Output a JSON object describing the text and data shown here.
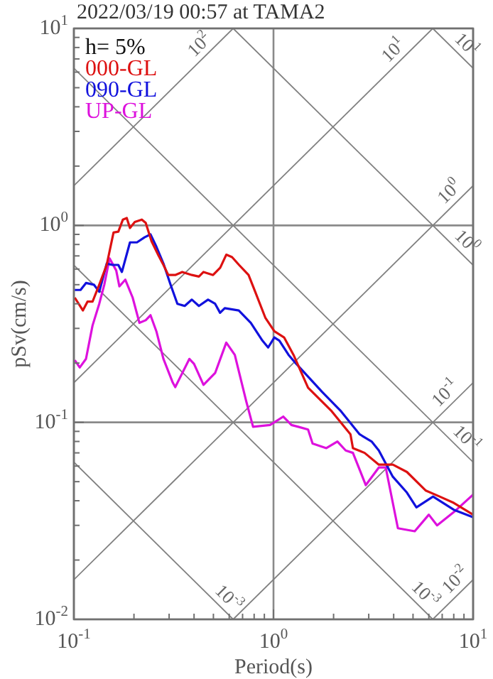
{
  "chart_data": {
    "type": "line",
    "title": "2022/03/19 00:57 at TAMA2",
    "xlabel": "Period(s)",
    "ylabel": "pSv(cm/s)",
    "log": "xy",
    "grid": true,
    "legend": "top left",
    "xlim": [
      0.1,
      10
    ],
    "ylim": [
      0.01,
      10
    ],
    "xticks": [
      {
        "value": 0.1,
        "label": "10$^{-1}$"
      },
      {
        "value": 0.2,
        "label": null
      },
      {
        "value": 0.3,
        "label": null
      },
      {
        "value": 0.4,
        "label": null
      },
      {
        "value": 0.5,
        "label": null
      },
      {
        "value": 0.6,
        "label": null
      },
      {
        "value": 0.7,
        "label": null
      },
      {
        "value": 0.8,
        "label": null
      },
      {
        "value": 0.9,
        "label": null
      },
      {
        "value": 1,
        "label": "10$^{0}$"
      },
      {
        "value": 2,
        "label": null
      },
      {
        "value": 3,
        "label": null
      },
      {
        "value": 4,
        "label": null
      },
      {
        "value": 5,
        "label": null
      },
      {
        "value": 6,
        "label": null
      },
      {
        "value": 7,
        "label": null
      },
      {
        "value": 8,
        "label": null
      },
      {
        "value": 9,
        "label": null
      },
      {
        "value": 10,
        "label": "10$^{1}$"
      }
    ],
    "yticks": [
      {
        "value": 0.01,
        "label": "10$^{-2}$"
      },
      {
        "value": 0.02,
        "label": null
      },
      {
        "value": 0.03,
        "label": null
      },
      {
        "value": 0.04,
        "label": null
      },
      {
        "value": 0.05,
        "label": null
      },
      {
        "value": 0.06,
        "label": null
      },
      {
        "value": 0.07,
        "label": null
      },
      {
        "value": 0.08,
        "label": null
      },
      {
        "value": 0.09,
        "label": null
      },
      {
        "value": 0.1,
        "label": "10$^{-1}$"
      },
      {
        "value": 0.2,
        "label": null
      },
      {
        "value": 0.3,
        "label": null
      },
      {
        "value": 0.4,
        "label": null
      },
      {
        "value": 0.5,
        "label": null
      },
      {
        "value": 0.6,
        "label": null
      },
      {
        "value": 0.7,
        "label": null
      },
      {
        "value": 0.8,
        "label": null
      },
      {
        "value": 0.9,
        "label": null
      },
      {
        "value": 1,
        "label": "10$^{0}$"
      },
      {
        "value": 2,
        "label": null
      },
      {
        "value": 3,
        "label": null
      },
      {
        "value": 4,
        "label": null
      },
      {
        "value": 5,
        "label": null
      },
      {
        "value": 6,
        "label": null
      },
      {
        "value": 7,
        "label": null
      },
      {
        "value": 8,
        "label": null
      },
      {
        "value": 9,
        "label": null
      },
      {
        "value": 10,
        "label": "10$^{1}$"
      }
    ],
    "series": [
      {
        "name": "000-GL",
        "color": "#dd1111",
        "x": [
          0.101,
          0.111,
          0.117,
          0.124,
          0.134,
          0.146,
          0.158,
          0.167,
          0.176,
          0.184,
          0.191,
          0.202,
          0.219,
          0.229,
          0.245,
          0.266,
          0.281,
          0.297,
          0.322,
          0.349,
          0.39,
          0.423,
          0.446,
          0.498,
          0.541,
          0.58,
          0.62,
          0.672,
          0.75,
          0.81,
          0.91,
          1.01,
          1.13,
          1.26,
          1.49,
          1.94,
          2.43,
          2.5,
          2.86,
          3.37,
          3.96,
          4.66,
          5.8,
          6.8,
          8.0,
          10
        ],
        "values": [
          0.43,
          0.37,
          0.41,
          0.41,
          0.5,
          0.63,
          0.92,
          0.93,
          1.07,
          1.09,
          0.97,
          1.04,
          1.07,
          1.03,
          0.83,
          0.7,
          0.63,
          0.56,
          0.56,
          0.58,
          0.56,
          0.55,
          0.58,
          0.56,
          0.61,
          0.71,
          0.69,
          0.63,
          0.56,
          0.46,
          0.34,
          0.29,
          0.27,
          0.22,
          0.15,
          0.115,
          0.087,
          0.074,
          0.07,
          0.061,
          0.061,
          0.056,
          0.045,
          0.042,
          0.039,
          0.034
        ]
      },
      {
        "name": "090-GL",
        "color": "#1111dd",
        "x": [
          0.101,
          0.108,
          0.115,
          0.126,
          0.134,
          0.146,
          0.156,
          0.167,
          0.174,
          0.191,
          0.207,
          0.226,
          0.242,
          0.259,
          0.281,
          0.305,
          0.33,
          0.359,
          0.39,
          0.423,
          0.47,
          0.51,
          0.54,
          0.57,
          0.67,
          0.77,
          0.88,
          0.94,
          1.01,
          1.07,
          1.19,
          1.29,
          1.75,
          2.16,
          2.7,
          3.1,
          3.37,
          3.96,
          4.66,
          5.2,
          6.3,
          8.0,
          10
        ],
        "values": [
          0.47,
          0.47,
          0.51,
          0.5,
          0.46,
          0.64,
          0.63,
          0.63,
          0.58,
          0.82,
          0.82,
          0.87,
          0.9,
          0.78,
          0.64,
          0.5,
          0.4,
          0.39,
          0.42,
          0.39,
          0.42,
          0.4,
          0.36,
          0.38,
          0.37,
          0.32,
          0.26,
          0.24,
          0.27,
          0.26,
          0.22,
          0.2,
          0.143,
          0.115,
          0.087,
          0.08,
          0.072,
          0.053,
          0.044,
          0.037,
          0.042,
          0.036,
          0.033
        ]
      },
      {
        "name": "UP-GL",
        "color": "#dd11dd",
        "x": [
          0.101,
          0.107,
          0.115,
          0.124,
          0.134,
          0.142,
          0.151,
          0.163,
          0.169,
          0.181,
          0.197,
          0.213,
          0.229,
          0.242,
          0.259,
          0.281,
          0.313,
          0.322,
          0.379,
          0.4,
          0.446,
          0.51,
          0.58,
          0.64,
          0.73,
          0.79,
          0.96,
          1.01,
          1.12,
          1.23,
          1.33,
          1.49,
          1.57,
          1.84,
          2.09,
          2.3,
          2.5,
          2.9,
          3.37,
          3.65,
          4.2,
          5.1,
          6.0,
          6.6,
          8.0,
          10
        ],
        "values": [
          0.207,
          0.19,
          0.21,
          0.31,
          0.4,
          0.5,
          0.68,
          0.59,
          0.49,
          0.53,
          0.43,
          0.32,
          0.33,
          0.35,
          0.29,
          0.21,
          0.159,
          0.151,
          0.21,
          0.198,
          0.155,
          0.178,
          0.254,
          0.22,
          0.128,
          0.095,
          0.097,
          0.1,
          0.107,
          0.097,
          0.095,
          0.092,
          0.078,
          0.074,
          0.08,
          0.072,
          0.07,
          0.048,
          0.059,
          0.059,
          0.029,
          0.028,
          0.034,
          0.03,
          0.035,
          0.043
        ]
      },
      {
        "type": "line",
        "color": "#808080",
        "x": [
          0.1,
          0.628
        ],
        "values": [
          1.59,
          10
        ]
      },
      {
        "type": "line",
        "color": "#808080",
        "x": [
          0.1,
          6.28
        ],
        "values": [
          0.159,
          10
        ]
      },
      {
        "type": "line",
        "color": "#808080",
        "x": [
          0.1,
          10
        ],
        "values": [
          0.0159,
          1.59
        ]
      },
      {
        "type": "line",
        "color": "#808080",
        "x": [
          0.628,
          10
        ],
        "values": [
          0.01,
          0.159
        ]
      },
      {
        "type": "line",
        "color": "#808080",
        "x": [
          6.28,
          10
        ],
        "values": [
          0.01,
          0.0159
        ]
      },
      {
        "type": "line",
        "color": "#808080",
        "x": [
          6.28,
          10
        ],
        "values": [
          10,
          6.28
        ]
      },
      {
        "type": "line",
        "color": "#808080",
        "x": [
          0.628,
          10
        ],
        "values": [
          10,
          0.628
        ]
      },
      {
        "type": "line",
        "color": "#808080",
        "x": [
          0.1,
          10
        ],
        "values": [
          6.28,
          0.0628
        ]
      },
      {
        "type": "line",
        "color": "#808080",
        "x": [
          0.1,
          6.28
        ],
        "values": [
          0.628,
          0.01
        ]
      },
      {
        "type": "line",
        "color": "#808080",
        "x": [
          0.1,
          0.628
        ],
        "values": [
          0.0628,
          0.01
        ]
      }
    ],
    "annotations": [
      "h= 5%",
      {
        "text": "10$^{2}$",
        "x": 0.47,
        "y": 7.47
      },
      {
        "text": "10$^{1}$",
        "x": 4.4,
        "y": 7
      },
      {
        "text": "10$^{1}$",
        "x": 8.4,
        "y": 7.48
      },
      {
        "text": "10$^{0}$",
        "x": 8.4,
        "y": 1.34
      },
      {
        "text": "10$^{0}$",
        "x": 8.4,
        "y": 0.748
      },
      {
        "text": "10$^{-1}$",
        "x": 8,
        "y": 0.127
      },
      {
        "text": "10$^{-1}$",
        "x": 8.4,
        "y": 0.0748
      },
      {
        "text": "10$^{-3}$",
        "x": 0.54,
        "y": 0.0116
      },
      {
        "text": "10$^{-3}$",
        "x": 5.2,
        "y": 0.0121
      },
      {
        "text": "10$^{-2}$",
        "x": 9,
        "y": 0.0143
      }
    ]
  }
}
